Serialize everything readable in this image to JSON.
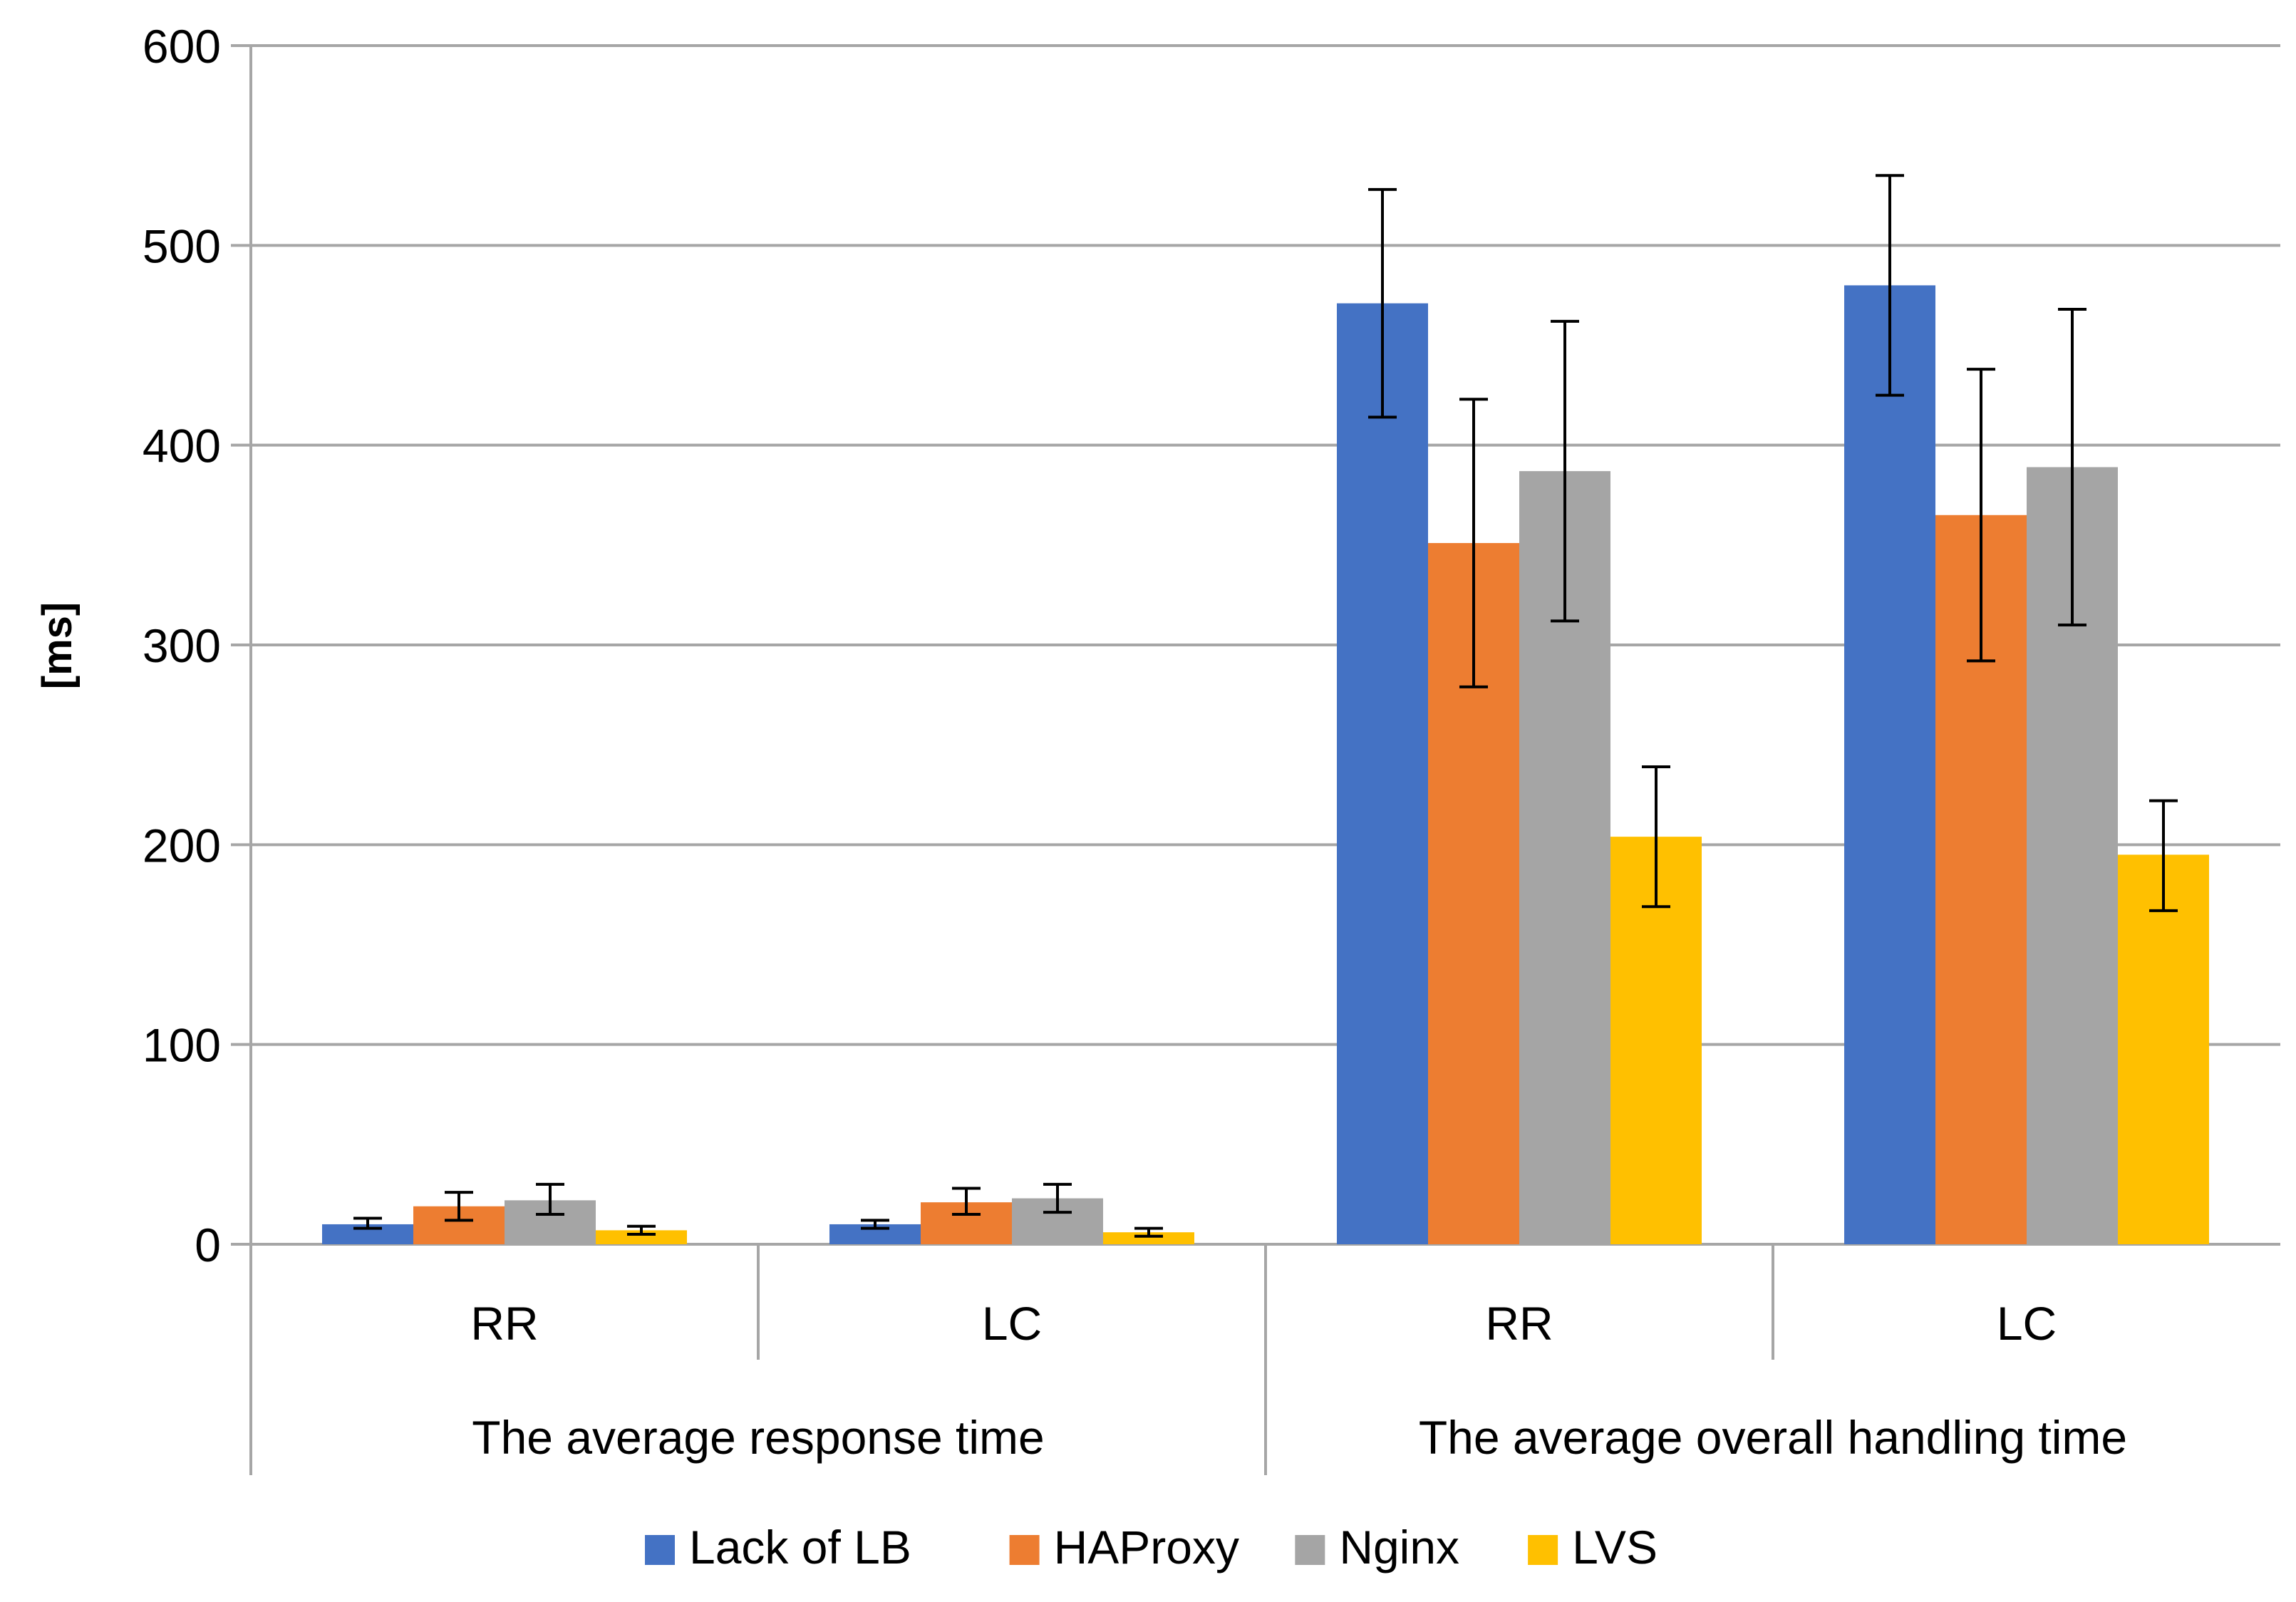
{
  "chart_data": {
    "type": "bar",
    "title": "",
    "xlabel": "",
    "ylabel": "[ms]",
    "ylim": [
      0,
      600
    ],
    "yticks": [
      0,
      100,
      200,
      300,
      400,
      500,
      600
    ],
    "grid": true,
    "legend_position": "bottom",
    "groups": [
      {
        "label": "The average response time",
        "categories": [
          "RR",
          "LC"
        ]
      },
      {
        "label": "The average overall handling time",
        "categories": [
          "RR",
          "LC"
        ]
      }
    ],
    "categories": [
      "RR",
      "LC",
      "RR",
      "LC"
    ],
    "series": [
      {
        "name": "Lack of LB",
        "color": "#4472C4",
        "values": [
          10,
          10,
          471,
          480
        ],
        "error_low": [
          8,
          8,
          414,
          425
        ],
        "error_high": [
          13,
          12,
          528,
          535
        ]
      },
      {
        "name": "HAProxy",
        "color": "#ED7D31",
        "values": [
          19,
          21,
          351,
          365
        ],
        "error_low": [
          12,
          15,
          279,
          292
        ],
        "error_high": [
          26,
          28,
          423,
          438
        ]
      },
      {
        "name": "Nginx",
        "color": "#A5A5A5",
        "values": [
          22,
          23,
          387,
          389
        ],
        "error_low": [
          15,
          16,
          312,
          310
        ],
        "error_high": [
          30,
          30,
          462,
          468
        ]
      },
      {
        "name": "LVS",
        "color": "#FFC000",
        "values": [
          7,
          6,
          204,
          195
        ],
        "error_low": [
          5,
          4,
          169,
          167
        ],
        "error_high": [
          9,
          8,
          239,
          222
        ]
      }
    ]
  }
}
